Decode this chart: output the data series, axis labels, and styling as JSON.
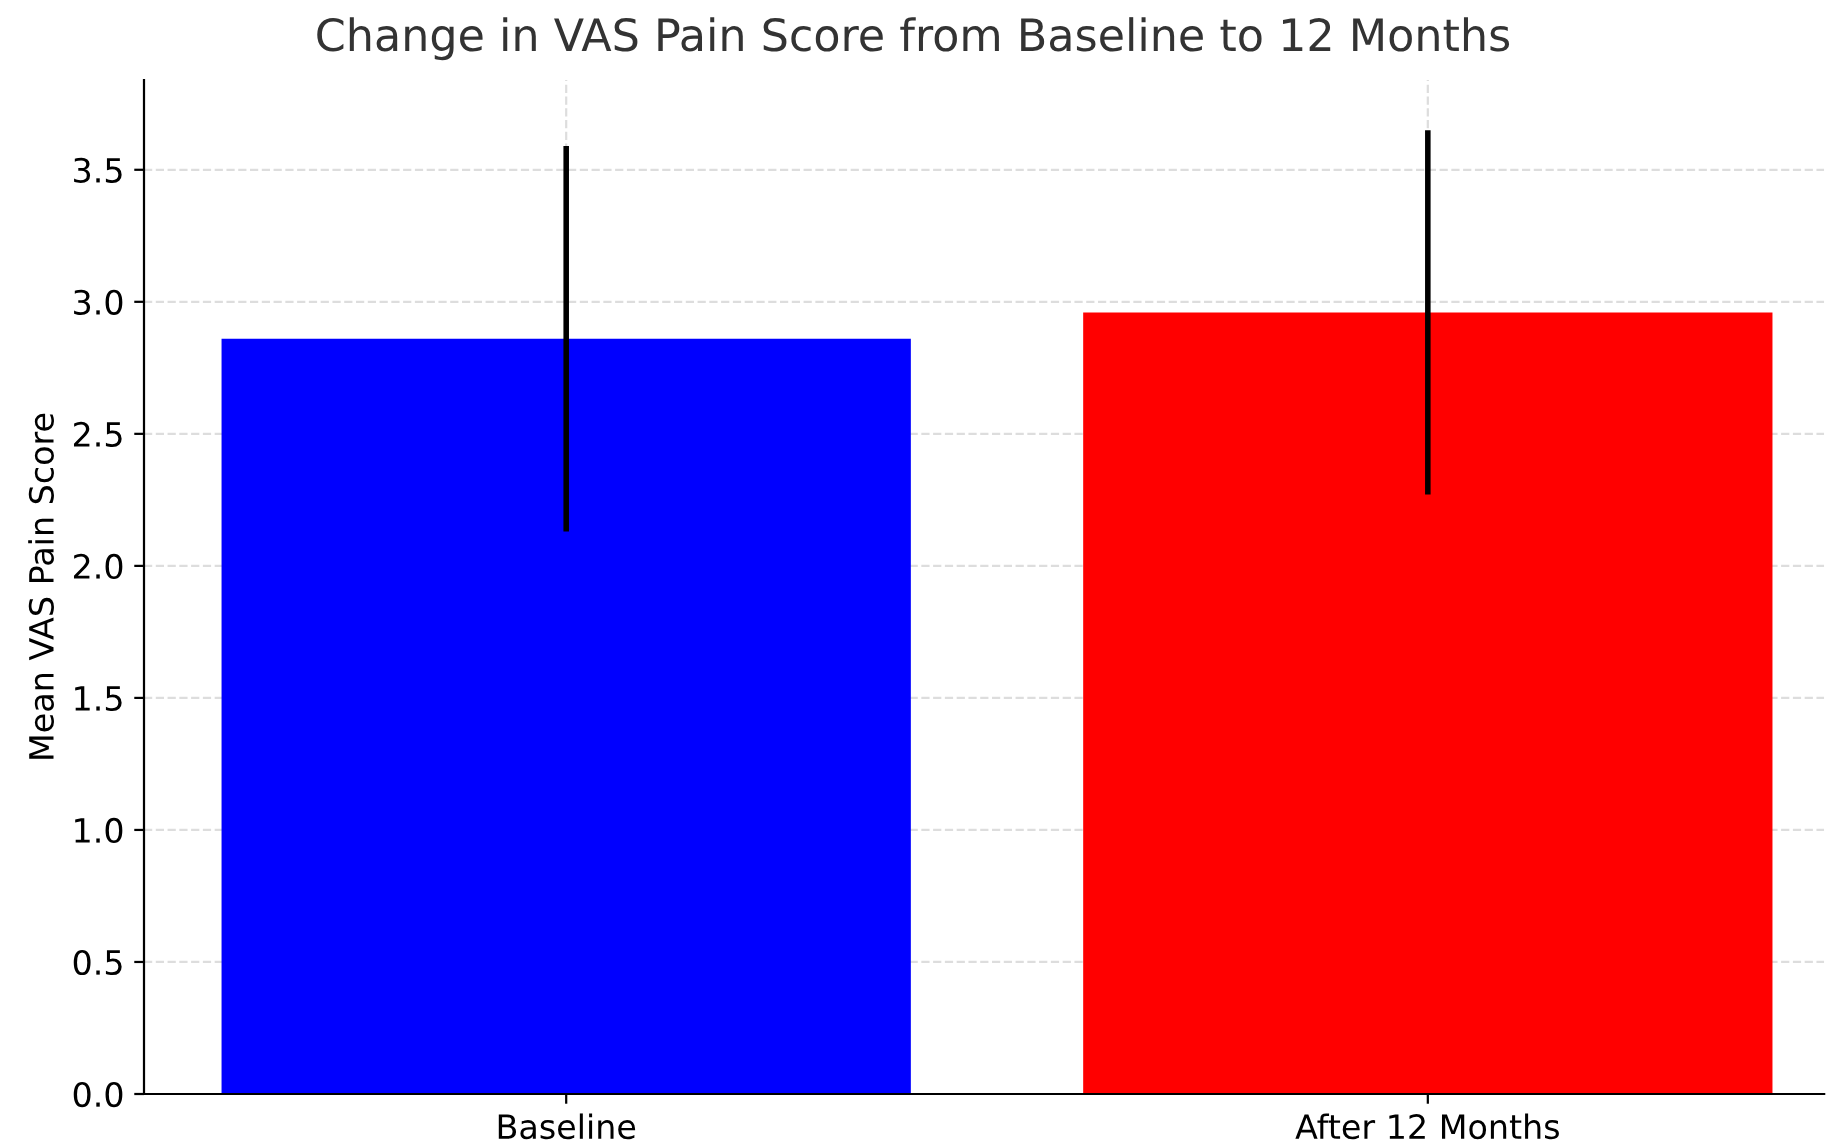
{
  "chart_data": {
    "type": "bar",
    "title": "Change in VAS Pain Score from Baseline to 12 Months",
    "ylabel": "Mean VAS Pain Score",
    "categories": [
      "Baseline",
      "After 12 Months"
    ],
    "values": [
      2.86,
      2.96
    ],
    "colors": [
      "#0000ff",
      "#ff0000"
    ],
    "errors": [
      0.73,
      0.69
    ],
    "ylim": [
      0,
      3.84
    ],
    "yticks": [
      {
        "value": 0,
        "label": "0.0"
      },
      0.5,
      {
        "value": 1,
        "label": "1.0"
      },
      1.5,
      {
        "value": 2,
        "label": "2.0"
      },
      2.5,
      {
        "value": 3,
        "label": "3.0"
      },
      3.5
    ],
    "grid": true
  }
}
